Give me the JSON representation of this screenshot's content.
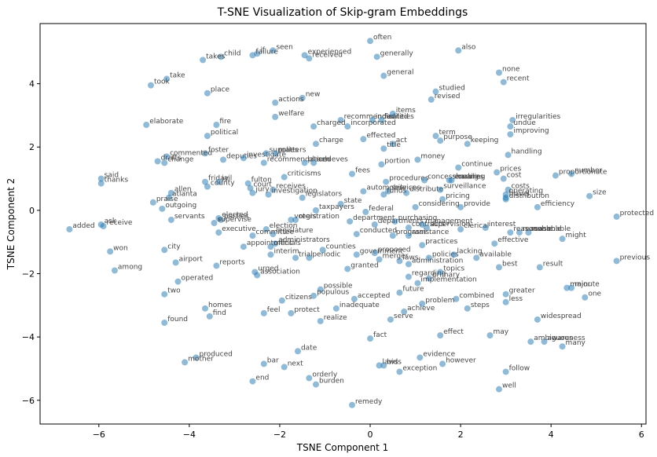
{
  "chart_data": {
    "type": "scatter",
    "title": "T-SNE Visualization of Skip-gram Embeddings",
    "xlabel": "TSNE Component 1",
    "ylabel": "TSNE Component 2",
    "xlim": [
      -7.3,
      6.1
    ],
    "ylim": [
      -6.75,
      5.9
    ],
    "xticks": [
      -6,
      -4,
      -2,
      0,
      2,
      4,
      6
    ],
    "yticks": [
      -6,
      -4,
      -2,
      0,
      2,
      4
    ],
    "xtick_labels": [
      "−6",
      "−4",
      "−2",
      "0",
      "2",
      "4",
      "6"
    ],
    "ytick_labels": [
      "−6",
      "−4",
      "−2",
      "0",
      "2",
      "4"
    ],
    "grid": false,
    "color": "#1f77b4",
    "points": [
      {
        "x": 0.0,
        "y": 5.35,
        "label": "often"
      },
      {
        "x": -2.15,
        "y": 5.05,
        "label": "seen"
      },
      {
        "x": -2.5,
        "y": 4.95,
        "label": "if"
      },
      {
        "x": -2.6,
        "y": 4.9,
        "label": "failure"
      },
      {
        "x": -1.45,
        "y": 4.9,
        "label": "experienced"
      },
      {
        "x": -1.35,
        "y": 4.8,
        "label": "received"
      },
      {
        "x": 0.15,
        "y": 4.85,
        "label": "generally"
      },
      {
        "x": 1.95,
        "y": 5.05,
        "label": "also"
      },
      {
        "x": -3.3,
        "y": 4.85,
        "label": "child"
      },
      {
        "x": -3.7,
        "y": 4.75,
        "label": "takes"
      },
      {
        "x": 2.85,
        "y": 4.35,
        "label": "none"
      },
      {
        "x": 2.95,
        "y": 4.05,
        "label": "recent"
      },
      {
        "x": -4.5,
        "y": 4.15,
        "label": "take"
      },
      {
        "x": -4.85,
        "y": 3.95,
        "label": "took"
      },
      {
        "x": 0.3,
        "y": 4.25,
        "label": "general"
      },
      {
        "x": -3.6,
        "y": 3.7,
        "label": "place"
      },
      {
        "x": -1.5,
        "y": 3.55,
        "label": "new"
      },
      {
        "x": 1.45,
        "y": 3.75,
        "label": "studied"
      },
      {
        "x": 1.35,
        "y": 3.5,
        "label": "revised"
      },
      {
        "x": -2.1,
        "y": 3.4,
        "label": "actions"
      },
      {
        "x": -2.1,
        "y": 2.95,
        "label": "welfare"
      },
      {
        "x": -0.65,
        "y": 2.85,
        "label": "recommended"
      },
      {
        "x": 0.05,
        "y": 2.85,
        "label": "indicated"
      },
      {
        "x": 0.25,
        "y": 2.85,
        "label": "facilities"
      },
      {
        "x": 0.5,
        "y": 3.05,
        "label": "items"
      },
      {
        "x": -1.25,
        "y": 2.65,
        "label": "charged"
      },
      {
        "x": -0.5,
        "y": 2.65,
        "label": "incorporated"
      },
      {
        "x": 3.15,
        "y": 2.85,
        "label": "irregularities"
      },
      {
        "x": 3.1,
        "y": 2.65,
        "label": "undue"
      },
      {
        "x": -4.95,
        "y": 2.7,
        "label": "elaborate"
      },
      {
        "x": -3.4,
        "y": 2.7,
        "label": "fire"
      },
      {
        "x": -3.6,
        "y": 2.35,
        "label": "political"
      },
      {
        "x": 1.45,
        "y": 2.35,
        "label": "term"
      },
      {
        "x": 1.55,
        "y": 2.2,
        "label": "purpose"
      },
      {
        "x": 2.15,
        "y": 2.1,
        "label": "keeping"
      },
      {
        "x": 3.1,
        "y": 2.4,
        "label": "improving"
      },
      {
        "x": -0.15,
        "y": 2.25,
        "label": "effected"
      },
      {
        "x": 0.5,
        "y": 2.1,
        "label": "act"
      },
      {
        "x": 0.3,
        "y": 1.95,
        "label": "title"
      },
      {
        "x": -1.2,
        "y": 2.1,
        "label": "charge"
      },
      {
        "x": -3.65,
        "y": 1.8,
        "label": "foster"
      },
      {
        "x": -4.5,
        "y": 1.7,
        "label": "commented"
      },
      {
        "x": -4.7,
        "y": 1.55,
        "label": "drafts"
      },
      {
        "x": -4.55,
        "y": 1.5,
        "label": "change"
      },
      {
        "x": -3.25,
        "y": 1.6,
        "label": "deputies"
      },
      {
        "x": -2.8,
        "y": 1.65,
        "label": "investigate"
      },
      {
        "x": -2.3,
        "y": 1.8,
        "label": "supplies"
      },
      {
        "x": -2.1,
        "y": 1.8,
        "label": "matters"
      },
      {
        "x": -2.35,
        "y": 1.5,
        "label": "recommendations"
      },
      {
        "x": -1.45,
        "y": 1.5,
        "label": "placed"
      },
      {
        "x": -1.25,
        "y": 1.5,
        "label": "achieves"
      },
      {
        "x": 0.25,
        "y": 1.45,
        "label": "portion"
      },
      {
        "x": 1.05,
        "y": 1.6,
        "label": "money"
      },
      {
        "x": 3.05,
        "y": 1.75,
        "label": "handling"
      },
      {
        "x": 1.95,
        "y": 1.35,
        "label": "continue"
      },
      {
        "x": -0.4,
        "y": 1.15,
        "label": "fees"
      },
      {
        "x": -1.9,
        "y": 1.05,
        "label": "criticisms"
      },
      {
        "x": -5.95,
        "y": 1.0,
        "label": "said"
      },
      {
        "x": -5.95,
        "y": 0.85,
        "label": "thanks"
      },
      {
        "x": -3.65,
        "y": 0.9,
        "label": "friday"
      },
      {
        "x": -3.35,
        "y": 0.9,
        "label": "jail"
      },
      {
        "x": -3.6,
        "y": 0.75,
        "label": "county"
      },
      {
        "x": -2.7,
        "y": 0.85,
        "label": "fulton"
      },
      {
        "x": -2.65,
        "y": 0.7,
        "label": "court"
      },
      {
        "x": -2.6,
        "y": 0.55,
        "label": "jury"
      },
      {
        "x": -2.15,
        "y": 0.65,
        "label": "receives"
      },
      {
        "x": -2.25,
        "y": 0.5,
        "label": "investigation"
      },
      {
        "x": 0.35,
        "y": 0.9,
        "label": "procedures"
      },
      {
        "x": 1.2,
        "y": 0.95,
        "label": "concessionaires"
      },
      {
        "x": 1.75,
        "y": 0.95,
        "label": "sharing"
      },
      {
        "x": 1.8,
        "y": 0.95,
        "label": "enabling"
      },
      {
        "x": 2.8,
        "y": 1.2,
        "label": "prices"
      },
      {
        "x": 2.95,
        "y": 1.0,
        "label": "cost"
      },
      {
        "x": 4.1,
        "y": 1.1,
        "label": "proportionate"
      },
      {
        "x": 4.45,
        "y": 1.15,
        "label": "number"
      },
      {
        "x": -0.15,
        "y": 0.6,
        "label": "automobile"
      },
      {
        "x": 0.4,
        "y": 0.6,
        "label": "services"
      },
      {
        "x": 0.3,
        "y": 0.5,
        "label": "funds"
      },
      {
        "x": 0.8,
        "y": 0.55,
        "label": "distribute"
      },
      {
        "x": 1.55,
        "y": 0.65,
        "label": "surveillance"
      },
      {
        "x": 1.6,
        "y": 0.35,
        "label": "pricing"
      },
      {
        "x": 3.05,
        "y": 0.65,
        "label": "costs"
      },
      {
        "x": 3.0,
        "y": 0.5,
        "label": "operating"
      },
      {
        "x": 3.0,
        "y": 0.4,
        "label": "travel"
      },
      {
        "x": 3.0,
        "y": 0.35,
        "label": "distribution"
      },
      {
        "x": 4.85,
        "y": 0.45,
        "label": "size"
      },
      {
        "x": -4.4,
        "y": 0.55,
        "label": "allen"
      },
      {
        "x": -4.45,
        "y": 0.4,
        "label": "atlanta"
      },
      {
        "x": -4.8,
        "y": 0.25,
        "label": "praise"
      },
      {
        "x": -4.6,
        "y": 0.05,
        "label": "outgoing"
      },
      {
        "x": -1.5,
        "y": 0.4,
        "label": "legislators"
      },
      {
        "x": -0.65,
        "y": 0.2,
        "label": "state"
      },
      {
        "x": -1.2,
        "y": 0.0,
        "label": "taxpayers"
      },
      {
        "x": -0.1,
        "y": -0.05,
        "label": "federal"
      },
      {
        "x": 1.0,
        "y": 0.1,
        "label": "considering"
      },
      {
        "x": 2.0,
        "y": 0.1,
        "label": "provide"
      },
      {
        "x": 3.7,
        "y": 0.1,
        "label": "efficiency"
      },
      {
        "x": 5.45,
        "y": -0.2,
        "label": "protected"
      },
      {
        "x": -4.4,
        "y": -0.3,
        "label": "servants"
      },
      {
        "x": -3.35,
        "y": -0.25,
        "label": "elected"
      },
      {
        "x": -3.3,
        "y": -0.3,
        "label": "parties"
      },
      {
        "x": -3.45,
        "y": -0.4,
        "label": "supervise"
      },
      {
        "x": -1.75,
        "y": -0.3,
        "label": "voters"
      },
      {
        "x": -1.65,
        "y": -0.3,
        "label": "registration"
      },
      {
        "x": -0.45,
        "y": -0.35,
        "label": "department"
      },
      {
        "x": 0.1,
        "y": -0.45,
        "label": "departments"
      },
      {
        "x": 0.55,
        "y": -0.35,
        "label": "purchasing"
      },
      {
        "x": 0.85,
        "y": -0.55,
        "label": "contracts"
      },
      {
        "x": 1.15,
        "y": -0.45,
        "label": "management"
      },
      {
        "x": 1.25,
        "y": -0.55,
        "label": "supervision"
      },
      {
        "x": 2.0,
        "y": -0.6,
        "label": "clerical"
      },
      {
        "x": 2.55,
        "y": -0.55,
        "label": "interest"
      },
      {
        "x": 3.3,
        "y": -0.7,
        "label": "reasonable"
      },
      {
        "x": 3.5,
        "y": -0.7,
        "label": "reasonable"
      },
      {
        "x": -6.65,
        "y": -0.6,
        "label": "added"
      },
      {
        "x": -5.95,
        "y": -0.45,
        "label": "ask"
      },
      {
        "x": -5.9,
        "y": -0.5,
        "label": "receive"
      },
      {
        "x": -2.3,
        "y": -0.6,
        "label": "election"
      },
      {
        "x": -2.15,
        "y": -0.75,
        "label": "legislature"
      },
      {
        "x": -3.35,
        "y": -0.7,
        "label": "executive"
      },
      {
        "x": -2.6,
        "y": -0.8,
        "label": "committee"
      },
      {
        "x": -2.1,
        "y": -1.05,
        "label": "administrators"
      },
      {
        "x": -2.8,
        "y": -1.15,
        "label": "appointment"
      },
      {
        "x": -2.2,
        "y": -1.15,
        "label": "officials"
      },
      {
        "x": -0.3,
        "y": -0.75,
        "label": "conducted"
      },
      {
        "x": 0.5,
        "y": -0.8,
        "label": "program"
      },
      {
        "x": 0.85,
        "y": -0.8,
        "label": "assistance"
      },
      {
        "x": 1.15,
        "y": -1.1,
        "label": "practices"
      },
      {
        "x": 2.75,
        "y": -1.05,
        "label": "effective"
      },
      {
        "x": 3.1,
        "y": -0.7,
        "label": "reasonable"
      },
      {
        "x": 4.25,
        "y": -0.9,
        "label": "might"
      },
      {
        "x": -5.75,
        "y": -1.3,
        "label": "won"
      },
      {
        "x": -4.55,
        "y": -1.25,
        "label": "city"
      },
      {
        "x": -2.2,
        "y": -1.4,
        "label": "interim"
      },
      {
        "x": -1.65,
        "y": -1.5,
        "label": "trial"
      },
      {
        "x": -1.35,
        "y": -1.5,
        "label": "periodic"
      },
      {
        "x": -1.05,
        "y": -1.25,
        "label": "counties"
      },
      {
        "x": -0.3,
        "y": -1.4,
        "label": "government"
      },
      {
        "x": 0.1,
        "y": -1.35,
        "label": "proposed"
      },
      {
        "x": 0.2,
        "y": -1.55,
        "label": "merger"
      },
      {
        "x": 0.65,
        "y": -1.6,
        "label": "laws"
      },
      {
        "x": 1.3,
        "y": -1.5,
        "label": "policies"
      },
      {
        "x": 1.85,
        "y": -1.4,
        "label": "lacking"
      },
      {
        "x": 2.35,
        "y": -1.5,
        "label": "available"
      },
      {
        "x": 5.45,
        "y": -1.6,
        "label": "previous"
      },
      {
        "x": -4.3,
        "y": -1.65,
        "label": "airport"
      },
      {
        "x": -3.4,
        "y": -1.75,
        "label": "reports"
      },
      {
        "x": -2.55,
        "y": -1.95,
        "label": "urged"
      },
      {
        "x": -2.5,
        "y": -2.05,
        "label": "association"
      },
      {
        "x": 0.85,
        "y": -1.7,
        "label": "administration"
      },
      {
        "x": -0.5,
        "y": -1.85,
        "label": "granted"
      },
      {
        "x": 2.85,
        "y": -1.8,
        "label": "best"
      },
      {
        "x": 3.75,
        "y": -1.8,
        "label": "result"
      },
      {
        "x": -5.65,
        "y": -1.9,
        "label": "among"
      },
      {
        "x": 0.85,
        "y": -2.1,
        "label": "regarding"
      },
      {
        "x": 1.3,
        "y": -2.15,
        "label": "primary"
      },
      {
        "x": 1.55,
        "y": -1.95,
        "label": "topics"
      },
      {
        "x": 1.05,
        "y": -2.3,
        "label": "implementation"
      },
      {
        "x": -4.25,
        "y": -2.25,
        "label": "operated"
      },
      {
        "x": -1.1,
        "y": -2.5,
        "label": "possible"
      },
      {
        "x": 0.65,
        "y": -2.6,
        "label": "future"
      },
      {
        "x": 3.0,
        "y": -2.65,
        "label": "greater"
      },
      {
        "x": 4.35,
        "y": -2.45,
        "label": "major"
      },
      {
        "x": 4.45,
        "y": -2.45,
        "label": "minute"
      },
      {
        "x": 4.75,
        "y": -2.75,
        "label": "one"
      },
      {
        "x": -4.55,
        "y": -2.65,
        "label": "two"
      },
      {
        "x": -1.25,
        "y": -2.7,
        "label": "populous"
      },
      {
        "x": -0.35,
        "y": -2.8,
        "label": "accepted"
      },
      {
        "x": 1.9,
        "y": -2.8,
        "label": "combined"
      },
      {
        "x": 3.0,
        "y": -2.9,
        "label": "less"
      },
      {
        "x": -1.95,
        "y": -2.85,
        "label": "citizens"
      },
      {
        "x": -0.75,
        "y": -3.1,
        "label": "inadequate"
      },
      {
        "x": 1.15,
        "y": -2.95,
        "label": "problem"
      },
      {
        "x": 2.15,
        "y": -3.1,
        "label": "steps"
      },
      {
        "x": -3.65,
        "y": -3.1,
        "label": "homes"
      },
      {
        "x": -3.55,
        "y": -3.35,
        "label": "find"
      },
      {
        "x": -2.35,
        "y": -3.25,
        "label": "feel"
      },
      {
        "x": -1.75,
        "y": -3.25,
        "label": "protect"
      },
      {
        "x": 0.75,
        "y": -3.2,
        "label": "achieve"
      },
      {
        "x": 0.45,
        "y": -3.45,
        "label": "serve"
      },
      {
        "x": -1.1,
        "y": -3.5,
        "label": "realize"
      },
      {
        "x": -4.55,
        "y": -3.55,
        "label": "found"
      },
      {
        "x": 3.7,
        "y": -3.45,
        "label": "widespread"
      },
      {
        "x": 1.55,
        "y": -3.95,
        "label": "effect"
      },
      {
        "x": 2.65,
        "y": -3.95,
        "label": "may"
      },
      {
        "x": 0.0,
        "y": -4.05,
        "label": "fact"
      },
      {
        "x": 3.55,
        "y": -4.15,
        "label": "ambiguous"
      },
      {
        "x": 3.85,
        "y": -4.15,
        "label": "awareness"
      },
      {
        "x": 4.25,
        "y": -4.3,
        "label": "many"
      },
      {
        "x": -1.6,
        "y": -4.45,
        "label": "date"
      },
      {
        "x": 1.1,
        "y": -4.65,
        "label": "evidence"
      },
      {
        "x": -3.85,
        "y": -4.65,
        "label": "produced"
      },
      {
        "x": -4.1,
        "y": -4.8,
        "label": "mother"
      },
      {
        "x": -2.35,
        "y": -4.85,
        "label": "bar"
      },
      {
        "x": -1.9,
        "y": -4.95,
        "label": "next"
      },
      {
        "x": 0.2,
        "y": -4.9,
        "label": "laws"
      },
      {
        "x": 0.3,
        "y": -4.9,
        "label": "bids"
      },
      {
        "x": 1.6,
        "y": -4.85,
        "label": "however"
      },
      {
        "x": 0.65,
        "y": -5.1,
        "label": "exception"
      },
      {
        "x": 3.0,
        "y": -5.1,
        "label": "follow"
      },
      {
        "x": -1.35,
        "y": -5.3,
        "label": "orderly"
      },
      {
        "x": -1.2,
        "y": -5.5,
        "label": "burden"
      },
      {
        "x": -2.6,
        "y": -5.4,
        "label": "end"
      },
      {
        "x": 2.85,
        "y": -5.65,
        "label": "well"
      },
      {
        "x": -0.4,
        "y": -6.15,
        "label": "remedy"
      }
    ]
  }
}
